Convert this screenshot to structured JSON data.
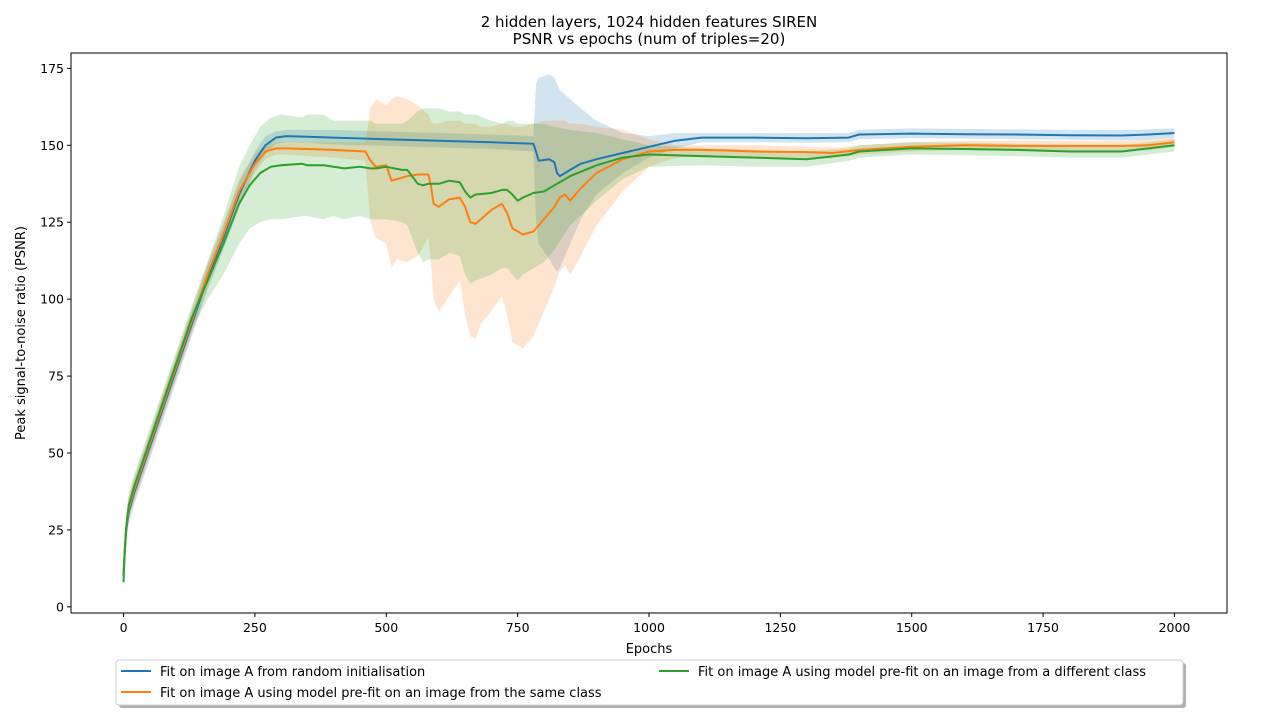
{
  "chart_data": {
    "type": "line",
    "title": "2 hidden layers, 1024 hidden features SIREN",
    "subtitle": "PSNR vs epochs (num of triples=20)",
    "xlabel": "Epochs",
    "ylabel": "Peak signal-to-noise ratio (PSNR)",
    "xlim": [
      -100,
      2100
    ],
    "ylim": [
      -2,
      180
    ],
    "xticks": [
      0,
      250,
      500,
      750,
      1000,
      1250,
      1500,
      1750,
      2000
    ],
    "yticks": [
      0,
      25,
      50,
      75,
      100,
      125,
      150,
      175
    ],
    "grid": false,
    "legend_position": "below plot",
    "series": [
      {
        "name": "Fit on image A from random initialisation",
        "color": "#1f77b4",
        "x": [
          0,
          2,
          5,
          10,
          20,
          40,
          70,
          100,
          130,
          160,
          190,
          220,
          250,
          270,
          290,
          310,
          350,
          400,
          500,
          600,
          700,
          780,
          785,
          790,
          810,
          820,
          825,
          830,
          850,
          870,
          900,
          950,
          1000,
          1050,
          1100,
          1200,
          1300,
          1380,
          1400,
          1500,
          1600,
          1700,
          1800,
          1900,
          1950,
          2000
        ],
        "y": [
          10,
          17,
          25,
          31,
          37,
          47,
          62,
          77,
          92,
          107,
          120,
          134,
          145,
          150,
          152.5,
          153,
          152.8,
          152.5,
          152,
          151.5,
          151,
          150.5,
          148,
          145,
          145.5,
          144.5,
          141,
          140,
          142,
          144,
          145.5,
          147.5,
          149.5,
          151.5,
          152.5,
          152.5,
          152.3,
          152.5,
          153.5,
          153.8,
          153.6,
          153.5,
          153.3,
          153.2,
          153.5,
          154
        ],
        "upper": [
          11,
          20,
          29,
          35,
          41,
          51,
          66,
          81,
          96,
          111,
          124,
          138,
          148,
          153,
          154.5,
          155,
          155,
          155,
          154.5,
          154,
          153.5,
          153,
          170,
          172,
          173,
          172,
          170,
          168,
          165,
          162,
          158,
          154,
          153,
          154,
          154,
          154,
          154,
          154,
          155,
          155.5,
          155.3,
          155.2,
          155,
          155,
          155.2,
          155.5
        ],
        "lower": [
          9,
          14,
          21,
          27,
          33,
          43,
          58,
          73,
          88,
          103,
          116,
          130,
          142,
          147,
          150.5,
          151,
          150.8,
          150.3,
          149.8,
          149.3,
          148.8,
          148,
          126,
          118,
          113,
          110,
          109,
          110,
          118,
          126,
          134,
          141,
          146,
          149,
          151,
          151,
          150.8,
          151,
          152,
          152.3,
          152.2,
          152,
          151.8,
          151.6,
          151.8,
          152.5
        ]
      },
      {
        "name": "Fit on image A using model pre-fit on an image from the same class",
        "color": "#ff7f0e",
        "x": [
          0,
          2,
          5,
          10,
          20,
          40,
          70,
          100,
          130,
          160,
          190,
          220,
          250,
          270,
          290,
          310,
          350,
          400,
          460,
          470,
          480,
          500,
          510,
          520,
          540,
          560,
          580,
          585,
          590,
          600,
          620,
          640,
          650,
          660,
          670,
          680,
          700,
          720,
          730,
          740,
          760,
          780,
          800,
          820,
          830,
          840,
          850,
          870,
          900,
          950,
          1000,
          1050,
          1100,
          1150,
          1200,
          1300,
          1350,
          1400,
          1500,
          1600,
          1700,
          1800,
          1900,
          1950,
          2000
        ],
        "y": [
          11,
          18,
          26,
          32,
          38,
          48,
          63,
          78,
          93,
          108,
          121,
          135,
          144,
          148,
          149,
          149,
          148.8,
          148.5,
          148,
          145,
          143,
          143.5,
          138.5,
          139,
          140,
          140.5,
          140.5,
          137,
          131,
          130,
          132.5,
          133,
          130,
          125,
          124.5,
          126,
          129,
          131,
          128,
          123,
          121,
          122,
          126,
          130,
          133,
          134,
          132,
          136,
          141,
          145.5,
          148,
          148.5,
          148.5,
          148.3,
          148,
          147.8,
          147.5,
          148.5,
          149.5,
          150,
          149.8,
          149.8,
          149.8,
          150,
          151
        ],
        "upper": [
          12,
          21,
          30,
          36,
          42,
          52,
          67,
          82,
          97,
          112,
          125,
          139,
          147,
          150.5,
          151,
          151,
          151,
          151,
          151,
          162,
          165,
          163,
          165,
          166,
          165,
          163,
          160,
          158,
          157,
          157,
          158,
          158,
          157,
          157,
          157,
          156,
          156,
          157,
          157,
          156,
          156,
          157,
          158,
          158,
          158,
          158,
          157,
          157,
          156,
          155,
          152,
          150,
          150,
          150,
          150,
          149.5,
          149.3,
          150,
          151,
          151.5,
          151.5,
          151.5,
          151.5,
          151.8,
          152.5
        ],
        "lower": [
          10,
          15,
          22,
          28,
          34,
          44,
          59,
          74,
          89,
          104,
          117,
          131,
          141,
          145.5,
          147,
          147,
          146.5,
          146,
          145,
          125,
          120,
          118,
          110,
          113,
          112,
          114,
          120,
          112,
          100,
          96,
          101,
          106,
          95,
          88,
          87,
          92,
          96,
          101,
          95,
          86,
          84,
          88,
          96,
          104,
          109,
          111,
          108,
          114,
          124,
          135,
          143,
          146,
          146.5,
          146.3,
          146,
          146,
          145.8,
          147,
          148,
          148.5,
          148.2,
          148.2,
          148.2,
          148.3,
          149.5
        ]
      },
      {
        "name": "Fit on image A using model pre-fit on an image from a different class",
        "color": "#2ca02c",
        "x": [
          0,
          2,
          5,
          10,
          20,
          40,
          70,
          100,
          130,
          160,
          190,
          220,
          240,
          260,
          280,
          300,
          340,
          350,
          380,
          400,
          420,
          450,
          470,
          480,
          500,
          530,
          540,
          560,
          570,
          580,
          600,
          620,
          640,
          650,
          660,
          670,
          700,
          720,
          730,
          740,
          750,
          760,
          780,
          800,
          820,
          850,
          900,
          950,
          1000,
          1100,
          1200,
          1300,
          1380,
          1400,
          1500,
          1600,
          1700,
          1800,
          1900,
          1950,
          2000
        ],
        "y": [
          8,
          17,
          26,
          33,
          39,
          49,
          64,
          79,
          94,
          106,
          118,
          131,
          137,
          141,
          143,
          143.5,
          144,
          143.5,
          143.5,
          143,
          142.5,
          143,
          142.5,
          142.5,
          143,
          142,
          142,
          137.5,
          137,
          137.5,
          137.5,
          138.5,
          138,
          135,
          133,
          134,
          134.5,
          135.5,
          135.5,
          134,
          132,
          133,
          134.5,
          135,
          137,
          140,
          143.5,
          146,
          147,
          146.5,
          146,
          145.5,
          147,
          148,
          149,
          148.8,
          148.5,
          148,
          148,
          149,
          150
        ],
        "upper": [
          9,
          20,
          30,
          37,
          43,
          53,
          68,
          83,
          98,
          112,
          127,
          143,
          150,
          156,
          159,
          160,
          159,
          160,
          160,
          158,
          158,
          158,
          158,
          157,
          157,
          157,
          158,
          161,
          162,
          162,
          162,
          161,
          161,
          160,
          160,
          160,
          158,
          157,
          158,
          158,
          157,
          157,
          157,
          157,
          156,
          155,
          154,
          152,
          150,
          149,
          148.5,
          148,
          149,
          150,
          151,
          150.8,
          150.5,
          150,
          150,
          151,
          152
        ],
        "lower": [
          7,
          14,
          22,
          29,
          35,
          45,
          60,
          75,
          90,
          100,
          108,
          118,
          123,
          125,
          126,
          126,
          127,
          127,
          126,
          127,
          126,
          127,
          126,
          126,
          126,
          125,
          124,
          115,
          112,
          113,
          113,
          115,
          114,
          108,
          105,
          106,
          108,
          110,
          110,
          108,
          106,
          108,
          110,
          112,
          116,
          124,
          132,
          139,
          143,
          143.5,
          143,
          143,
          145,
          146,
          147,
          146.8,
          146.5,
          146,
          146,
          147,
          148
        ]
      }
    ]
  }
}
